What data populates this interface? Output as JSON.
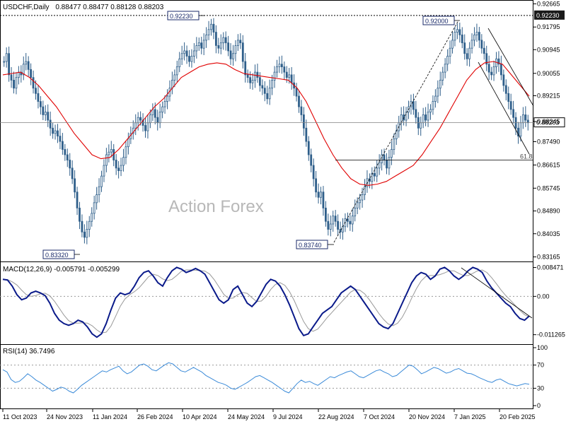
{
  "chart_data": [
    {
      "panel": "price",
      "type": "candlestick",
      "header": {
        "symbol_timeframe": "USDCHF,Daily",
        "ohlc": "0.88477 0.88477 0.88128 0.88203"
      },
      "watermark": "Action Forex",
      "ylim": [
        0.831,
        0.9265
      ],
      "y_ticks": [
        "0.92665",
        "0.91795",
        "0.90945",
        "0.90055",
        "0.89215",
        "0.88245",
        "0.87490",
        "0.86615",
        "0.85745",
        "0.84890",
        "0.84035",
        "0.83165"
      ],
      "current_price": "0.88203",
      "high_line": "0.92230",
      "fib_label": "61.8",
      "fib_level": 0.868,
      "callouts": [
        {
          "label": "0.92230",
          "date": "2024-04-22"
        },
        {
          "label": "0.92000",
          "date": "2025-01-13"
        },
        {
          "label": "0.83320",
          "date": "2023-12-28"
        },
        {
          "label": "0.83740",
          "date": "2024-08-05"
        }
      ],
      "close": [
        0.905,
        0.908,
        0.9,
        0.898,
        0.895,
        0.899,
        0.901,
        0.9,
        0.904,
        0.905,
        0.902,
        0.899,
        0.895,
        0.893,
        0.89,
        0.888,
        0.885,
        0.886,
        0.883,
        0.88,
        0.878,
        0.879,
        0.877,
        0.875,
        0.872,
        0.87,
        0.868,
        0.865,
        0.861,
        0.856,
        0.85,
        0.845,
        0.841,
        0.839,
        0.842,
        0.845,
        0.848,
        0.852,
        0.855,
        0.858,
        0.862,
        0.866,
        0.87,
        0.871,
        0.872,
        0.868,
        0.865,
        0.864,
        0.866,
        0.869,
        0.873,
        0.876,
        0.878,
        0.88,
        0.882,
        0.884,
        0.883,
        0.881,
        0.879,
        0.882,
        0.885,
        0.887,
        0.884,
        0.882,
        0.886,
        0.888,
        0.89,
        0.892,
        0.895,
        0.898,
        0.9,
        0.903,
        0.906,
        0.908,
        0.909,
        0.907,
        0.905,
        0.907,
        0.909,
        0.911,
        0.912,
        0.91,
        0.913,
        0.915,
        0.917,
        0.919,
        0.916,
        0.911,
        0.91,
        0.912,
        0.914,
        0.912,
        0.909,
        0.906,
        0.908,
        0.911,
        0.913,
        0.912,
        0.905,
        0.9,
        0.899,
        0.897,
        0.898,
        0.901,
        0.899,
        0.896,
        0.895,
        0.893,
        0.891,
        0.895,
        0.898,
        0.901,
        0.903,
        0.904,
        0.903,
        0.901,
        0.899,
        0.9,
        0.897,
        0.895,
        0.892,
        0.888,
        0.885,
        0.88,
        0.875,
        0.87,
        0.866,
        0.861,
        0.856,
        0.854,
        0.856,
        0.85,
        0.845,
        0.842,
        0.844,
        0.847,
        0.845,
        0.842,
        0.841,
        0.843,
        0.846,
        0.845,
        0.844,
        0.847,
        0.85,
        0.852,
        0.853,
        0.855,
        0.858,
        0.861,
        0.86,
        0.863,
        0.862,
        0.865,
        0.867,
        0.87,
        0.868,
        0.865,
        0.869,
        0.872,
        0.876,
        0.879,
        0.882,
        0.885,
        0.883,
        0.886,
        0.888,
        0.89,
        0.887,
        0.884,
        0.88,
        0.882,
        0.885,
        0.883,
        0.886,
        0.887,
        0.89,
        0.892,
        0.895,
        0.898,
        0.901,
        0.904,
        0.907,
        0.91,
        0.913,
        0.916,
        0.917,
        0.915,
        0.912,
        0.908,
        0.906,
        0.91,
        0.913,
        0.915,
        0.916,
        0.913,
        0.91,
        0.908,
        0.904,
        0.901,
        0.9,
        0.903,
        0.906,
        0.904,
        0.9,
        0.896,
        0.893,
        0.89,
        0.887,
        0.884,
        0.88,
        0.877,
        0.882,
        0.885,
        0.883,
        0.882
      ],
      "ma_trend": [
        0.9,
        0.9005,
        0.901,
        0.899,
        0.896,
        0.892,
        0.888,
        0.883,
        0.878,
        0.874,
        0.87,
        0.8685,
        0.869,
        0.872,
        0.876,
        0.88,
        0.884,
        0.888,
        0.891,
        0.895,
        0.899,
        0.901,
        0.903,
        0.904,
        0.9045,
        0.904,
        0.902,
        0.9005,
        0.9,
        0.8995,
        0.899,
        0.8985,
        0.898,
        0.895,
        0.89,
        0.883,
        0.876,
        0.87,
        0.865,
        0.861,
        0.859,
        0.8585,
        0.859,
        0.86,
        0.862,
        0.864,
        0.866,
        0.87,
        0.875,
        0.88,
        0.886,
        0.892,
        0.898,
        0.902,
        0.9045,
        0.905,
        0.904,
        0.9,
        0.896,
        0.892
      ],
      "macd": {
        "label": "MACD(12,26,9) -0.005791 -0.005299",
        "ylim": [
          -0.013,
          0.009
        ],
        "y_ticks": [
          "0.008471",
          "0.00",
          "-0.011265"
        ],
        "main": [
          0.005,
          0.0048,
          0.003,
          0.0005,
          -0.001,
          -0.0005,
          0.001,
          0.0015,
          0.001,
          0.0002,
          -0.002,
          -0.005,
          -0.007,
          -0.008,
          -0.0085,
          -0.008,
          -0.007,
          -0.0075,
          -0.009,
          -0.011,
          -0.012,
          -0.011,
          -0.008,
          -0.004,
          -0.0005,
          0.001,
          0.0005,
          0.001,
          0.003,
          0.0055,
          0.007,
          0.0075,
          0.006,
          0.004,
          0.003,
          0.0055,
          0.0075,
          0.0085,
          0.008,
          0.007,
          0.0075,
          0.0082,
          0.0075,
          0.0065,
          0.004,
          0.0015,
          -0.001,
          -0.002,
          -0.001,
          0.002,
          0.003,
          0.0005,
          -0.002,
          -0.003,
          -0.0015,
          0.001,
          0.0035,
          0.005,
          0.0045,
          0.003,
          0.0005,
          -0.0025,
          -0.006,
          -0.0095,
          -0.0115,
          -0.011,
          -0.009,
          -0.007,
          -0.005,
          -0.004,
          -0.003,
          -0.001,
          0.001,
          0.002,
          0.003,
          0.002,
          0.0,
          -0.002,
          -0.004,
          -0.006,
          -0.008,
          -0.009,
          -0.0095,
          -0.008,
          -0.005,
          -0.002,
          0.001,
          0.004,
          0.006,
          0.007,
          0.0065,
          0.005,
          0.006,
          0.008,
          0.0085,
          0.0075,
          0.006,
          0.005,
          0.006,
          0.0075,
          0.0085,
          0.008,
          0.007,
          0.0045,
          0.0025,
          0.001,
          -0.0005,
          -0.002,
          -0.003,
          -0.005,
          -0.0065,
          -0.007,
          -0.0058
        ]
      },
      "rsi": {
        "label": "RSI(14) 36.7496",
        "ylim": [
          0,
          100
        ],
        "y_ticks": [
          "100",
          "70",
          "30",
          "0"
        ],
        "levels": [
          70,
          30
        ],
        "values": [
          62,
          58,
          45,
          40,
          42,
          48,
          55,
          50,
          44,
          40,
          35,
          30,
          25,
          28,
          32,
          30,
          25,
          22,
          28,
          35,
          40,
          45,
          50,
          55,
          60,
          58,
          62,
          65,
          68,
          60,
          55,
          58,
          64,
          70,
          72,
          68,
          62,
          60,
          65,
          70,
          74,
          72,
          66,
          60,
          58,
          62,
          66,
          62,
          58,
          52,
          48,
          44,
          40,
          38,
          35,
          30,
          28,
          32,
          36,
          40,
          45,
          50,
          52,
          48,
          44,
          40,
          35,
          30,
          25,
          22,
          30,
          38,
          44,
          40,
          42,
          38,
          35,
          40,
          45,
          50,
          48,
          52,
          55,
          58,
          60,
          55,
          50,
          48,
          52,
          56,
          60,
          62,
          58,
          55,
          50,
          52,
          58,
          64,
          70,
          68,
          62,
          55,
          58,
          62,
          66,
          64,
          60,
          56,
          58,
          62,
          64,
          60,
          56,
          55,
          52,
          48,
          45,
          42,
          40,
          44,
          46,
          42,
          38,
          36,
          34,
          36,
          38,
          37
        ]
      },
      "x_ticks": [
        "11 Oct 2023",
        "24 Nov 2023",
        "11 Jan 2024",
        "26 Feb 2024",
        "10 Apr 2024",
        "24 May 2024",
        "9 Jul 2024",
        "22 Aug 2024",
        "7 Oct 2024",
        "20 Nov 2024",
        "7 Jan 2025",
        "20 Feb 2025"
      ],
      "colors": {
        "candle": "#2f5f8a",
        "ma": "#e00000",
        "macd_line": "#0a1a8a",
        "signal_line": "#999999",
        "rsi_line": "#3a8ad8",
        "label_box": "#1a2a6a"
      }
    }
  ]
}
